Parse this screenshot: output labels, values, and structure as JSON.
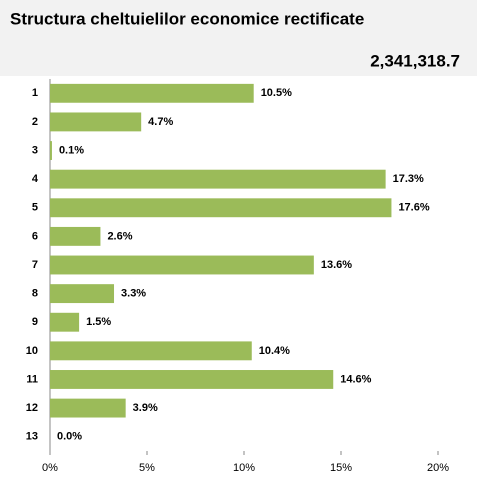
{
  "chart_data": {
    "type": "bar",
    "orientation": "horizontal",
    "title": "Structura cheltuielilor economice rectificate",
    "subtitle": "2,341,318.7",
    "categories": [
      "1",
      "2",
      "3",
      "4",
      "5",
      "6",
      "7",
      "8",
      "9",
      "10",
      "11",
      "12",
      "13"
    ],
    "values": [
      10.5,
      4.7,
      0.1,
      17.3,
      17.6,
      2.6,
      13.6,
      3.3,
      1.5,
      10.4,
      14.6,
      3.9,
      0.0
    ],
    "value_labels": [
      "10.5%",
      "4.7%",
      "0.1%",
      "17.3%",
      "17.6%",
      "2.6%",
      "13.6%",
      "3.3%",
      "1.5%",
      "10.4%",
      "14.6%",
      "3.9%",
      "0.0%"
    ],
    "color": "#9bbb59",
    "xlim": [
      0,
      20
    ],
    "xticks": [
      {
        "value": 0,
        "label": "0%"
      },
      {
        "value": 5,
        "label": "5%"
      },
      {
        "value": 10,
        "label": "10%"
      },
      {
        "value": 15,
        "label": "15%"
      },
      {
        "value": 20,
        "label": "20%"
      }
    ],
    "grid": false
  }
}
